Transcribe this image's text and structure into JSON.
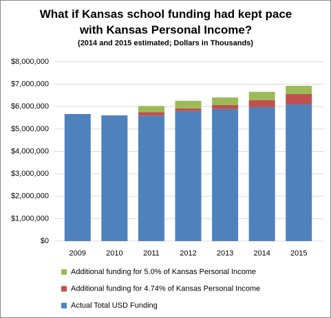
{
  "chart_data": {
    "type": "stacked-bar",
    "title": "What if Kansas school funding had kept pace with Kansas Personal Income?",
    "subtitle": "(2014 and 2015 estimated; Dollars in Thousands)",
    "categories": [
      "2009",
      "2010",
      "2011",
      "2012",
      "2013",
      "2014",
      "2015"
    ],
    "series": [
      {
        "name": "Actual Total USD Funding",
        "color": "#4f81bd",
        "values": [
          5670000,
          5610000,
          5600000,
          5800000,
          5890000,
          5980000,
          6100000
        ]
      },
      {
        "name": "Additional funding for 4.74% of Kansas Personal Income",
        "color": "#c0504d",
        "values": [
          null,
          null,
          150000,
          120000,
          180000,
          310000,
          460000
        ]
      },
      {
        "name": "Additional funding for 5.0% of Kansas Personal Income",
        "color": "#9bbb59",
        "values": [
          null,
          null,
          280000,
          340000,
          340000,
          370000,
          370000
        ]
      }
    ],
    "ylim": [
      0,
      8000000
    ],
    "yticks": [
      {
        "value": 0,
        "label": "$0"
      },
      {
        "value": 1000000,
        "label": "$1,000,000"
      },
      {
        "value": 2000000,
        "label": "$2,000,000"
      },
      {
        "value": 3000000,
        "label": "$3,000,000"
      },
      {
        "value": 4000000,
        "label": "$4,000,000"
      },
      {
        "value": 5000000,
        "label": "$5,000,000"
      },
      {
        "value": 6000000,
        "label": "$6,000,000"
      },
      {
        "value": 7000000,
        "label": "$7,000,000"
      },
      {
        "value": 8000000,
        "label": "$8,000,000"
      }
    ],
    "grid": true,
    "legend": "bottom"
  }
}
